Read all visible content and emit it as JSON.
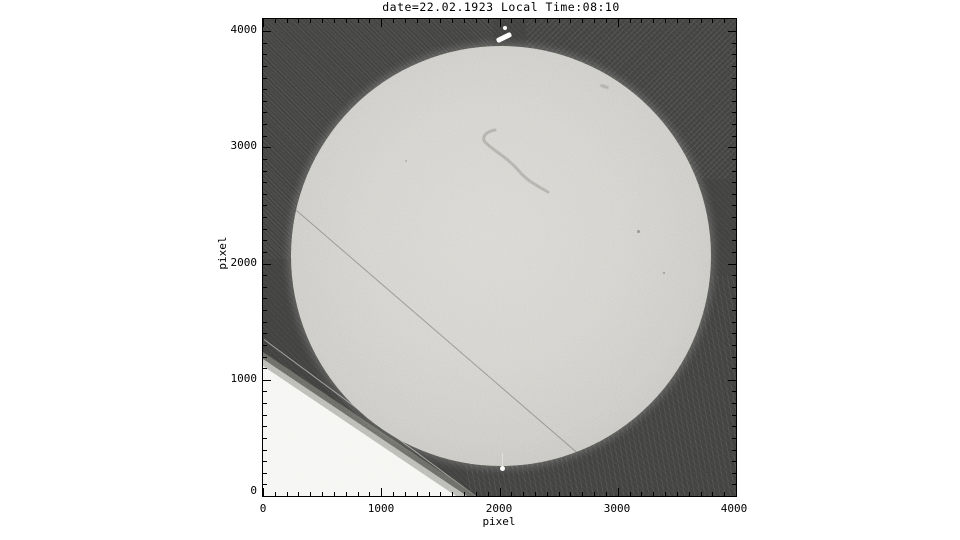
{
  "plot": {
    "title": "date=22.02.1923 Local Time:08:10"
  },
  "axes": {
    "x": {
      "label": "pixel",
      "min": 0,
      "max": 4000,
      "major_step": 1000,
      "minor_step": 100,
      "tick_labels": [
        "0",
        "1000",
        "2000",
        "3000",
        "4000"
      ]
    },
    "y": {
      "label": "pixel",
      "min": 0,
      "max": 4000,
      "major_step": 1000,
      "minor_step": 100,
      "tick_labels": [
        "0",
        "1000",
        "2000",
        "3000",
        "4000"
      ]
    }
  },
  "chart_data": {
    "type": "heatmap",
    "title": "date=22.02.1923 Local Time:08:10",
    "xlabel": "pixel",
    "ylabel": "pixel",
    "xlim": [
      0,
      4000
    ],
    "ylim": [
      0,
      4000
    ],
    "grid": false,
    "legend": false,
    "description": "Grayscale display of a digitized historical full-disk solar photographic plate. Bright solar disk on dark plate background with diagonal scanning/hatching texture, film grain, scratches and plate-edge artifacts.",
    "features": [
      {
        "name": "solar-disk",
        "shape": "circle",
        "center": [
          2010,
          2070
        ],
        "radius": 1770,
        "tone": "bright gray, mild limb darkening"
      },
      {
        "name": "plate-corner-white-triangle",
        "shape": "triangle",
        "vertices": [
          [
            0,
            1110
          ],
          [
            1630,
            0
          ],
          [
            0,
            0
          ]
        ],
        "tone": "white with gray fringe along hypotenuse"
      },
      {
        "name": "dark-scratch-across-disk",
        "shape": "line",
        "from": [
          260,
          2480
        ],
        "to": [
          2660,
          380
        ]
      },
      {
        "name": "bright-scratch-lower-left",
        "shape": "line",
        "from": [
          10,
          1360
        ],
        "to": [
          1820,
          0
        ]
      },
      {
        "name": "fiducial-white-dash-top",
        "center": [
          2000,
          3880
        ]
      },
      {
        "name": "fiducial-white-dot-top",
        "center": [
          2030,
          3960
        ]
      },
      {
        "name": "fiducial-white-dot-bottom",
        "center": [
          2020,
          250
        ]
      },
      {
        "name": "small-dark-spot",
        "center": [
          3160,
          2280
        ]
      },
      {
        "name": "small-dark-spot",
        "center": [
          3380,
          1920
        ]
      },
      {
        "name": "faint-dark-filament-marking",
        "path_from": [
          1970,
          3120
        ],
        "path_to": [
          2600,
          2550
        ]
      },
      {
        "name": "diagonal-hatch-texture",
        "regions": [
          "top-left",
          "top-right",
          "bottom-right"
        ]
      }
    ]
  },
  "colors": {
    "page_background": "#ffffff",
    "plate_background": "#3d3d3c",
    "disk_center": "#d7d6d1",
    "disk_limb": "#9b9a95",
    "plate_corner": "#f5f5f2",
    "axis": "#000000"
  }
}
